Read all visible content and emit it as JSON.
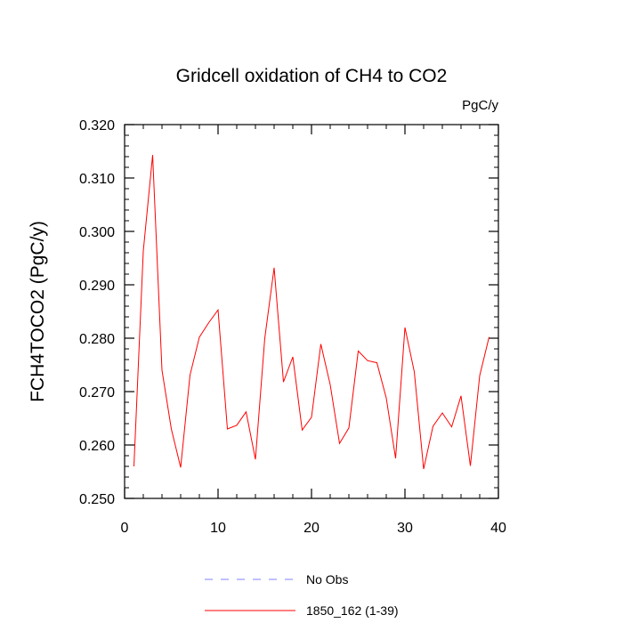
{
  "chart_data": {
    "type": "line",
    "title": "Gridcell oxidation of CH4 to CO2",
    "units": "PgC/y",
    "ylabel": "FCH4TOCO2  (PgC/y)",
    "xlabel": "",
    "xlim": [
      0,
      40
    ],
    "ylim": [
      0.25,
      0.32
    ],
    "x_ticks": [
      {
        "value": 0,
        "label": "0"
      },
      {
        "value": 10,
        "label": "10"
      },
      {
        "value": 20,
        "label": "20"
      },
      {
        "value": 30,
        "label": "30"
      },
      {
        "value": 40,
        "label": "40"
      }
    ],
    "y_ticks": [
      {
        "value": 0.25,
        "label": "0.250"
      },
      {
        "value": 0.26,
        "label": "0.260"
      },
      {
        "value": 0.27,
        "label": "0.270"
      },
      {
        "value": 0.28,
        "label": "0.280"
      },
      {
        "value": 0.29,
        "label": "0.290"
      },
      {
        "value": 0.3,
        "label": "0.300"
      },
      {
        "value": 0.31,
        "label": "0.310"
      },
      {
        "value": 0.32,
        "label": "0.320"
      }
    ],
    "grid": false,
    "series": [
      {
        "name": "No Obs",
        "color": "#8080ff",
        "dashed": true,
        "x": [],
        "y": []
      },
      {
        "name": "1850_162 (1-39)",
        "color": "#ff0000",
        "dashed": false,
        "x": [
          1,
          2,
          3,
          4,
          5,
          6,
          7,
          8,
          9,
          10,
          11,
          12,
          13,
          14,
          15,
          16,
          17,
          18,
          19,
          20,
          21,
          22,
          23,
          24,
          25,
          26,
          27,
          28,
          29,
          30,
          31,
          32,
          33,
          34,
          35,
          36,
          37,
          38,
          39
        ],
        "y": [
          0.256,
          0.2963,
          0.3143,
          0.274,
          0.263,
          0.2558,
          0.2731,
          0.2802,
          0.2829,
          0.2853,
          0.263,
          0.2637,
          0.2662,
          0.2573,
          0.28,
          0.2932,
          0.2718,
          0.2765,
          0.2628,
          0.2652,
          0.2789,
          0.2713,
          0.2603,
          0.2632,
          0.2776,
          0.2758,
          0.2754,
          0.2688,
          0.2575,
          0.282,
          0.2737,
          0.2555,
          0.2635,
          0.266,
          0.2634,
          0.2692,
          0.2561,
          0.273,
          0.2802
        ]
      }
    ],
    "legend_position": "bottom-center"
  }
}
